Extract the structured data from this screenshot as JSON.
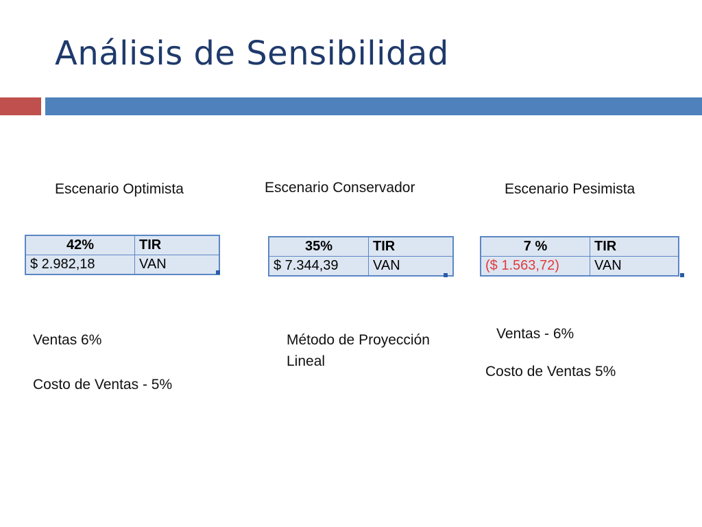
{
  "title": "Análisis de Sensibilidad",
  "colors": {
    "title": "#1f3a6b",
    "bar_red": "#c0504d",
    "bar_blue": "#4f81bd",
    "negative": "#e23a3a"
  },
  "scenarios": [
    {
      "heading": "Escenario Optimista",
      "tir_value": "42%",
      "tir_label": "TIR",
      "van_value": "$ 2.982,18",
      "van_label": "VAN",
      "notes": [
        "Ventas 6%",
        "Costo de Ventas - 5%"
      ]
    },
    {
      "heading": "Escenario Conservador",
      "tir_value": "35%",
      "tir_label": "TIR",
      "van_value": "$ 7.344,39",
      "van_label": "VAN",
      "notes": [
        "Método de Proyección Lineal"
      ]
    },
    {
      "heading": "Escenario Pesimista",
      "tir_value": "7 %",
      "tir_label": "TIR",
      "van_value": "($ 1.563,72)",
      "van_label": "VAN",
      "notes": [
        "Ventas  - 6%",
        "Costo de Ventas 5%"
      ]
    }
  ]
}
